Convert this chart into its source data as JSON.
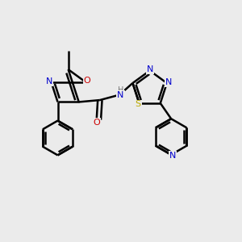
{
  "bg_color": "#ebebeb",
  "atom_colors": {
    "C": "#000000",
    "N": "#0000cc",
    "O": "#cc0000",
    "S": "#bbaa00",
    "H": "#777777"
  },
  "bond_color": "#000000",
  "bond_width": 1.8,
  "lw": 1.8
}
